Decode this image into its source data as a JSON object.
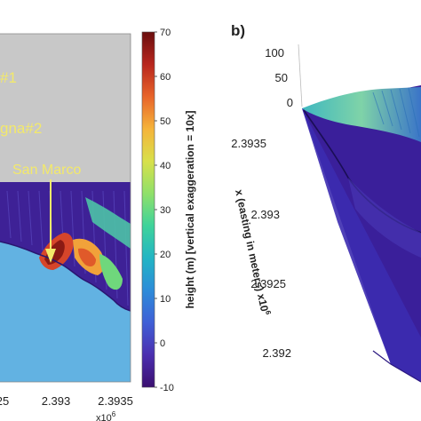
{
  "panel_a": {
    "annotation_1": "#1",
    "annotation_2": "gna#2",
    "annotation_3": "San Marco",
    "x_ticks": [
      "25",
      "2.393",
      "2.3935"
    ],
    "x_exponent": "x10",
    "x_exponent_sup": "6"
  },
  "panel_b": {
    "label": "b)",
    "z_ticks": [
      "100",
      "50",
      "0"
    ],
    "x_ticks": [
      "2.3935",
      "2.393",
      "2.3925",
      "2.392"
    ],
    "axis_label": "x (easting in meters) x10",
    "axis_label_sup": "6"
  },
  "colorbar": {
    "label": "height (m) [vertical exaggeration = 10x]",
    "ticks": [
      "70",
      "60",
      "50",
      "40",
      "30",
      "20",
      "10",
      "0",
      "-10"
    ],
    "min": -10,
    "max": 70,
    "colors": [
      "#3b0f70",
      "#4b2fb0",
      "#3f5fd6",
      "#2d8cd9",
      "#22b5c4",
      "#3fd39a",
      "#8fe06a",
      "#d8e04a",
      "#f5b43a",
      "#e8642a",
      "#b8261e",
      "#6a0e0e"
    ]
  },
  "chart_data": {
    "type": "heatmap",
    "colorbar_range": [
      -10,
      70
    ],
    "colorbar_ticks": [
      70,
      60,
      50,
      40,
      30,
      20,
      10,
      0,
      -10
    ],
    "panel_a_x_ticks": [
      "25",
      "2.393",
      "2.3935"
    ],
    "panel_b_z_ticks": [
      100,
      50,
      0
    ],
    "panel_b_x_ticks": [
      2.3935,
      2.393,
      2.3925,
      2.392
    ]
  }
}
